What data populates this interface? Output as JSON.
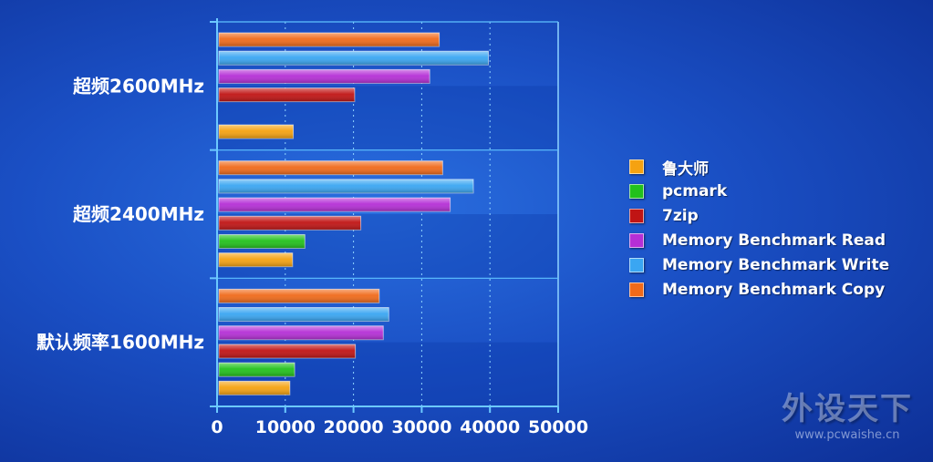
{
  "chart_data": {
    "type": "bar",
    "orientation": "horizontal",
    "categories": [
      "超频2600MHz",
      "超频2400MHz",
      "默认频率1600MHz"
    ],
    "series": [
      {
        "name": "Memory Benchmark Copy",
        "color": "#f06a1a",
        "values": [
          32300,
          32800,
          23500
        ]
      },
      {
        "name": "Memory Benchmark Write",
        "color": "#3aa6f2",
        "values": [
          39500,
          37300,
          24900
        ]
      },
      {
        "name": "Memory Benchmark Read",
        "color": "#b52fd6",
        "values": [
          30900,
          33900,
          24100
        ]
      },
      {
        "name": "7zip",
        "color": "#c01414",
        "values": [
          19900,
          20800,
          20000
        ]
      },
      {
        "name": "pcmark",
        "color": "#22c11c",
        "values": [
          null,
          12600,
          11100
        ]
      },
      {
        "name": "鲁大师",
        "color": "#f5a211",
        "values": [
          10900,
          10800,
          10400
        ]
      }
    ],
    "xlim": [
      0,
      50000
    ],
    "xticks": [
      "0",
      "10000",
      "20000",
      "30000",
      "40000",
      "50000"
    ],
    "grid": true,
    "legend_position": "right",
    "legend_order": [
      "鲁大师",
      "pcmark",
      "7zip",
      "Memory Benchmark Read",
      "Memory Benchmark Write",
      "Memory Benchmark Copy"
    ]
  },
  "legend": [
    {
      "label": "鲁大师",
      "color": "#f5a211"
    },
    {
      "label": "pcmark",
      "color": "#22c11c"
    },
    {
      "label": "7zip",
      "color": "#c01414"
    },
    {
      "label": "Memory Benchmark Read",
      "color": "#b52fd6"
    },
    {
      "label": "Memory Benchmark Write",
      "color": "#3aa6f2"
    },
    {
      "label": "Memory Benchmark Copy",
      "color": "#f06a1a"
    }
  ],
  "watermark": {
    "title": "外设天下",
    "url": "www.pcwaishe.cn"
  }
}
